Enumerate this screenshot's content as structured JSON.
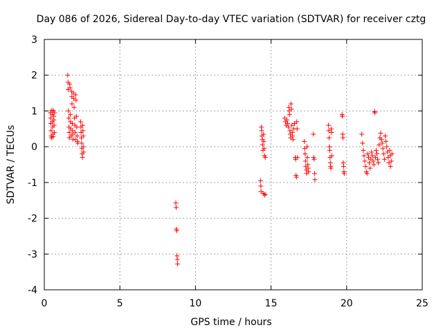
{
  "chart_data": {
    "type": "scatter",
    "title": "Day 086 of 2026, Sidereal Day-to-day VTEC variation (SDTVAR) for receiver cztg",
    "xlabel": "GPS time / hours",
    "ylabel": "SDTVAR / TECUs",
    "xlim": [
      0,
      25
    ],
    "ylim": [
      -4,
      3
    ],
    "xticks": [
      "0",
      "5",
      "10",
      "15",
      "20",
      "25"
    ],
    "yticks": [
      "3",
      "2",
      "1",
      "0",
      "-1",
      "-2",
      "-3",
      "-4"
    ],
    "grid": true,
    "marker": "+",
    "color": "#ff0000",
    "series": [
      {
        "name": "cztg",
        "points": [
          [
            0.4,
            0.95
          ],
          [
            0.42,
            0.8
          ],
          [
            0.43,
            0.65
          ],
          [
            0.45,
            0.45
          ],
          [
            0.46,
            0.3
          ],
          [
            0.48,
            0.25
          ],
          [
            0.5,
            1.02
          ],
          [
            0.52,
            0.9
          ],
          [
            0.54,
            0.7
          ],
          [
            0.55,
            0.55
          ],
          [
            0.57,
            0.35
          ],
          [
            0.58,
            0.28
          ],
          [
            0.6,
            1.0
          ],
          [
            0.62,
            0.85
          ],
          [
            0.63,
            0.75
          ],
          [
            0.65,
            0.6
          ],
          [
            0.67,
            0.4
          ],
          [
            0.68,
            0.95
          ],
          [
            1.55,
            2.0
          ],
          [
            1.57,
            1.8
          ],
          [
            1.58,
            1.6
          ],
          [
            1.6,
            1.0
          ],
          [
            1.62,
            0.8
          ],
          [
            1.63,
            0.55
          ],
          [
            1.65,
            0.4
          ],
          [
            1.66,
            0.25
          ],
          [
            1.68,
            1.75
          ],
          [
            1.7,
            1.65
          ],
          [
            1.72,
            0.9
          ],
          [
            1.73,
            0.7
          ],
          [
            1.75,
            0.5
          ],
          [
            1.77,
            0.3
          ],
          [
            1.8,
            1.55
          ],
          [
            1.82,
            1.4
          ],
          [
            1.83,
            1.2
          ],
          [
            1.85,
            0.65
          ],
          [
            1.87,
            0.45
          ],
          [
            1.88,
            0.35
          ],
          [
            1.9,
            0.2
          ],
          [
            1.92,
            1.5
          ],
          [
            1.95,
            1.35
          ],
          [
            1.97,
            1.1
          ],
          [
            2.0,
            0.8
          ],
          [
            2.02,
            0.6
          ],
          [
            2.04,
            0.4
          ],
          [
            2.05,
            0.2
          ],
          [
            2.07,
            1.45
          ],
          [
            2.1,
            1.3
          ],
          [
            2.12,
            0.85
          ],
          [
            2.15,
            0.55
          ],
          [
            2.17,
            0.3
          ],
          [
            2.2,
            0.15
          ],
          [
            2.22,
            0.1
          ],
          [
            2.4,
            0.7
          ],
          [
            2.42,
            0.55
          ],
          [
            2.43,
            0.4
          ],
          [
            2.45,
            0.25
          ],
          [
            2.47,
            0.1
          ],
          [
            2.48,
            -0.05
          ],
          [
            2.5,
            -0.2
          ],
          [
            2.52,
            -0.3
          ],
          [
            2.53,
            0.6
          ],
          [
            2.55,
            0.45
          ],
          [
            2.57,
            0.3
          ],
          [
            2.58,
            0.0
          ],
          [
            2.6,
            -0.15
          ],
          [
            8.7,
            -1.57
          ],
          [
            8.72,
            -1.7
          ],
          [
            8.74,
            -2.3
          ],
          [
            8.76,
            -2.35
          ],
          [
            8.78,
            -3.05
          ],
          [
            8.8,
            -3.15
          ],
          [
            8.82,
            -3.28
          ],
          [
            14.3,
            -0.95
          ],
          [
            14.32,
            -1.1
          ],
          [
            14.34,
            -1.25
          ],
          [
            14.36,
            0.55
          ],
          [
            14.38,
            0.45
          ],
          [
            14.4,
            0.3
          ],
          [
            14.42,
            0.2
          ],
          [
            14.44,
            0.05
          ],
          [
            14.46,
            -0.1
          ],
          [
            14.48,
            -1.3
          ],
          [
            14.5,
            0.35
          ],
          [
            14.52,
            0.15
          ],
          [
            14.54,
            -0.05
          ],
          [
            14.56,
            -0.25
          ],
          [
            14.58,
            -1.35
          ],
          [
            14.6,
            -1.33
          ],
          [
            14.62,
            -0.3
          ],
          [
            15.9,
            0.8
          ],
          [
            15.95,
            0.7
          ],
          [
            16.0,
            0.6
          ],
          [
            16.05,
            0.75
          ],
          [
            16.1,
            0.65
          ],
          [
            16.15,
            0.55
          ],
          [
            16.18,
            1.1
          ],
          [
            16.2,
            1.0
          ],
          [
            16.22,
            0.9
          ],
          [
            16.25,
            0.45
          ],
          [
            16.27,
            0.35
          ],
          [
            16.3,
            0.25
          ],
          [
            16.32,
            1.2
          ],
          [
            16.35,
            1.05
          ],
          [
            16.38,
            0.6
          ],
          [
            16.4,
            0.4
          ],
          [
            16.42,
            0.3
          ],
          [
            16.45,
            0.2
          ],
          [
            16.5,
            0.5
          ],
          [
            16.55,
            0.65
          ],
          [
            16.6,
            -0.3
          ],
          [
            16.62,
            -0.35
          ],
          [
            16.65,
            -0.8
          ],
          [
            16.68,
            -0.85
          ],
          [
            16.7,
            0.7
          ],
          [
            16.72,
            0.5
          ],
          [
            16.75,
            -0.3
          ],
          [
            17.2,
            0.15
          ],
          [
            17.22,
            -0.05
          ],
          [
            17.25,
            -0.2
          ],
          [
            17.28,
            -0.4
          ],
          [
            17.3,
            -0.55
          ],
          [
            17.33,
            -0.65
          ],
          [
            17.35,
            -0.75
          ],
          [
            17.38,
            0.0
          ],
          [
            17.4,
            -0.3
          ],
          [
            17.43,
            -0.5
          ],
          [
            17.45,
            -0.6
          ],
          [
            17.48,
            -0.7
          ],
          [
            17.8,
            0.35
          ],
          [
            17.82,
            -0.3
          ],
          [
            17.85,
            -0.35
          ],
          [
            17.88,
            -0.75
          ],
          [
            17.9,
            -0.92
          ],
          [
            18.8,
            0.6
          ],
          [
            18.82,
            0.45
          ],
          [
            18.84,
            0.25
          ],
          [
            18.86,
            0.0
          ],
          [
            18.88,
            -0.1
          ],
          [
            18.9,
            -0.3
          ],
          [
            18.92,
            -0.45
          ],
          [
            18.94,
            -0.55
          ],
          [
            18.96,
            -0.6
          ],
          [
            18.98,
            0.5
          ],
          [
            19.0,
            0.4
          ],
          [
            19.02,
            -0.25
          ],
          [
            19.7,
            0.9
          ],
          [
            19.72,
            0.85
          ],
          [
            19.74,
            0.35
          ],
          [
            19.76,
            0.25
          ],
          [
            19.78,
            -0.45
          ],
          [
            19.8,
            -0.55
          ],
          [
            19.82,
            -0.7
          ],
          [
            19.84,
            -0.75
          ],
          [
            21.0,
            0.35
          ],
          [
            21.05,
            0.1
          ],
          [
            21.1,
            -0.1
          ],
          [
            21.15,
            -0.25
          ],
          [
            21.2,
            -0.4
          ],
          [
            21.25,
            -0.55
          ],
          [
            21.3,
            -0.7
          ],
          [
            21.35,
            -0.75
          ],
          [
            21.4,
            -0.2
          ],
          [
            21.45,
            -0.3
          ],
          [
            21.5,
            -0.45
          ],
          [
            21.55,
            -0.6
          ],
          [
            21.6,
            -0.35
          ],
          [
            21.65,
            -0.15
          ],
          [
            21.7,
            -0.25
          ],
          [
            21.75,
            -0.4
          ],
          [
            21.8,
            -0.5
          ],
          [
            21.85,
            0.98
          ],
          [
            21.87,
            0.95
          ],
          [
            21.9,
            -0.3
          ],
          [
            21.95,
            -0.1
          ],
          [
            22.0,
            -0.2
          ],
          [
            22.05,
            -0.35
          ],
          [
            22.1,
            -0.45
          ],
          [
            22.15,
            0.05
          ],
          [
            22.2,
            0.25
          ],
          [
            22.25,
            0.38
          ],
          [
            22.3,
            0.2
          ],
          [
            22.35,
            0.1
          ],
          [
            22.4,
            -0.05
          ],
          [
            22.45,
            -0.2
          ],
          [
            22.5,
            -0.35
          ],
          [
            22.55,
            0.3
          ],
          [
            22.6,
            0.15
          ],
          [
            22.65,
            0.0
          ],
          [
            22.7,
            -0.15
          ],
          [
            22.75,
            -0.3
          ],
          [
            22.8,
            -0.45
          ],
          [
            22.85,
            -0.1
          ],
          [
            22.88,
            -0.25
          ],
          [
            22.9,
            -0.55
          ],
          [
            22.95,
            -0.4
          ],
          [
            23.0,
            -0.2
          ]
        ]
      }
    ]
  }
}
